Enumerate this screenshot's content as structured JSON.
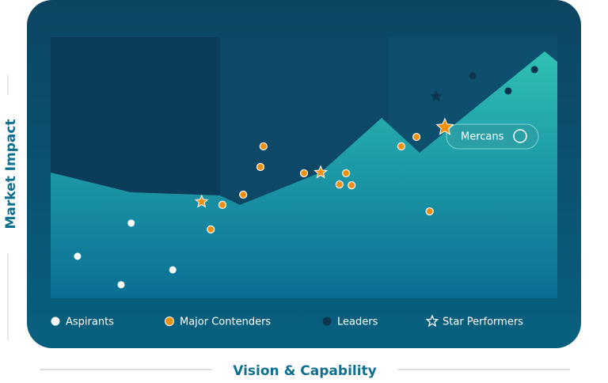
{
  "chart_data": {
    "type": "scatter",
    "x_label": "Vision & Capability",
    "y_label": "Market Impact",
    "xlim": [
      0,
      100
    ],
    "ylim": [
      0,
      100
    ],
    "series": [
      {
        "name": "Aspirants",
        "color": "#ffffff",
        "marker": "circle",
        "x": [
          5.3,
          13.9,
          15.9,
          24.1
        ],
        "y": [
          16.1,
          5.2,
          28.8,
          10.9
        ]
      },
      {
        "name": "Major Contenders",
        "color": "#f0900f",
        "marker": "circle",
        "x": [
          42.0,
          41.4,
          38.0,
          33.9,
          31.6,
          50.0,
          58.3,
          57.0,
          59.4,
          69.2,
          72.2,
          74.8
        ],
        "y": [
          58.2,
          50.3,
          39.7,
          35.8,
          26.4,
          47.9,
          47.9,
          43.6,
          43.3,
          58.2,
          61.8,
          33.3
        ]
      },
      {
        "name": "Leaders",
        "color": "#0d3550",
        "marker": "circle",
        "x": [
          83.3,
          90.3,
          95.5
        ],
        "y": [
          85.2,
          79.4,
          87.6
        ]
      },
      {
        "name": "Star Performers",
        "color": "#ffffff",
        "marker": "star",
        "colors": [
          "#f0900f",
          "#f0900f",
          "#f0900f",
          "#0d3550"
        ],
        "x": [
          29.8,
          53.3,
          77.8,
          76.1
        ],
        "y": [
          37.0,
          48.2,
          65.5,
          77.3
        ]
      }
    ],
    "annotation": "Mercans"
  }
}
